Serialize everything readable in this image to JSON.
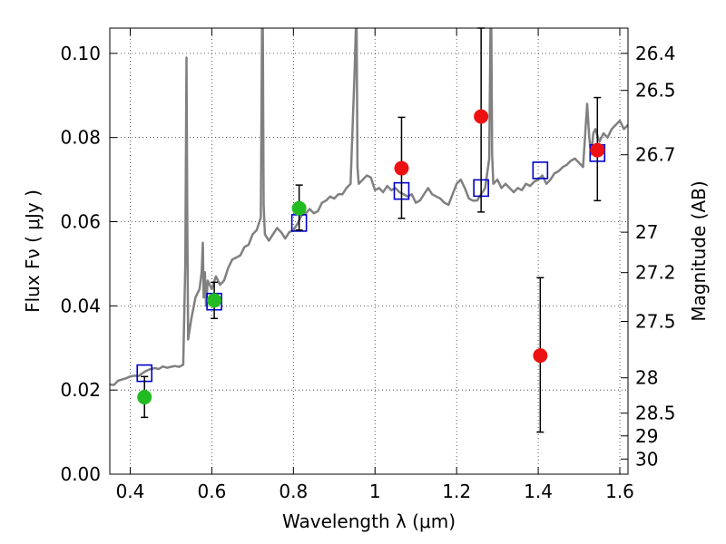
{
  "chart_data": {
    "type": "scatter",
    "xlabel": "Wavelength  λ (μm)",
    "ylabel": "Flux  Fν  ( μJy )",
    "ylabel_right": "Magnitude (AB)",
    "xlim": [
      0.35,
      1.62
    ],
    "ylim": [
      0.0,
      0.106
    ],
    "x_ticks": [
      0.4,
      0.6,
      0.8,
      1.0,
      1.2,
      1.4,
      1.6
    ],
    "x_tick_labels": [
      "0.4",
      "0.6",
      "0.8",
      "1",
      "1.2",
      "1.4",
      "1.6"
    ],
    "y_ticks": [
      0.0,
      0.02,
      0.04,
      0.06,
      0.08,
      0.1
    ],
    "y_tick_labels": [
      "0.00",
      "0.02",
      "0.04",
      "0.06",
      "0.08",
      "0.10"
    ],
    "right_ticks": [
      {
        "label": "26.4",
        "flux": 0.1
      },
      {
        "label": "26.5",
        "flux": 0.0912
      },
      {
        "label": "26.7",
        "flux": 0.0759
      },
      {
        "label": "27",
        "flux": 0.0575
      },
      {
        "label": "27.2",
        "flux": 0.0479
      },
      {
        "label": "27.5",
        "flux": 0.0363
      },
      {
        "label": "28",
        "flux": 0.0229
      },
      {
        "label": "28.5",
        "flux": 0.0145
      },
      {
        "label": "29",
        "flux": 0.0091
      },
      {
        "label": "30",
        "flux": 0.0036
      }
    ],
    "grid": true,
    "series": [
      {
        "kind": "model_sed",
        "color": "#808080",
        "x": [
          0.35,
          0.36,
          0.37,
          0.38,
          0.39,
          0.4,
          0.41,
          0.42,
          0.43,
          0.44,
          0.45,
          0.46,
          0.47,
          0.48,
          0.49,
          0.5,
          0.51,
          0.52,
          0.53,
          0.535,
          0.538,
          0.54,
          0.542,
          0.545,
          0.55,
          0.56,
          0.57,
          0.575,
          0.578,
          0.58,
          0.583,
          0.586,
          0.59,
          0.6,
          0.61,
          0.62,
          0.63,
          0.64,
          0.65,
          0.66,
          0.67,
          0.68,
          0.69,
          0.7,
          0.71,
          0.72,
          0.723,
          0.725,
          0.727,
          0.73,
          0.74,
          0.75,
          0.76,
          0.77,
          0.78,
          0.79,
          0.8,
          0.81,
          0.82,
          0.83,
          0.84,
          0.85,
          0.86,
          0.87,
          0.88,
          0.89,
          0.9,
          0.91,
          0.92,
          0.93,
          0.94,
          0.95,
          0.953,
          0.955,
          0.957,
          0.96,
          0.97,
          0.98,
          0.99,
          1.0,
          1.01,
          1.02,
          1.03,
          1.04,
          1.05,
          1.06,
          1.07,
          1.08,
          1.09,
          1.1,
          1.11,
          1.12,
          1.13,
          1.14,
          1.15,
          1.16,
          1.17,
          1.18,
          1.19,
          1.2,
          1.21,
          1.22,
          1.23,
          1.24,
          1.25,
          1.27,
          1.28,
          1.283,
          1.285,
          1.287,
          1.29,
          1.3,
          1.31,
          1.32,
          1.33,
          1.34,
          1.35,
          1.36,
          1.37,
          1.38,
          1.39,
          1.4,
          1.41,
          1.42,
          1.43,
          1.44,
          1.45,
          1.46,
          1.47,
          1.48,
          1.49,
          1.5,
          1.51,
          1.52,
          1.525,
          1.53,
          1.535,
          1.54,
          1.55,
          1.56,
          1.57,
          1.58,
          1.59,
          1.6,
          1.61,
          1.62
        ],
        "y": [
          0.0213,
          0.0212,
          0.0222,
          0.0225,
          0.0228,
          0.0232,
          0.0234,
          0.0233,
          0.024,
          0.0246,
          0.025,
          0.0252,
          0.025,
          0.0256,
          0.0253,
          0.0255,
          0.0257,
          0.0255,
          0.026,
          0.05,
          0.099,
          0.06,
          0.032,
          0.034,
          0.037,
          0.042,
          0.044,
          0.048,
          0.055,
          0.042,
          0.048,
          0.04,
          0.046,
          0.044,
          0.047,
          0.045,
          0.046,
          0.049,
          0.051,
          0.0515,
          0.052,
          0.054,
          0.0545,
          0.057,
          0.058,
          0.061,
          0.106,
          0.106,
          0.064,
          0.057,
          0.0555,
          0.057,
          0.0585,
          0.0575,
          0.056,
          0.0575,
          0.058,
          0.0595,
          0.0615,
          0.062,
          0.063,
          0.062,
          0.0625,
          0.0645,
          0.065,
          0.066,
          0.0655,
          0.0665,
          0.0665,
          0.068,
          0.069,
          0.096,
          0.106,
          0.106,
          0.073,
          0.069,
          0.07,
          0.071,
          0.0705,
          0.0675,
          0.068,
          0.067,
          0.0685,
          0.0675,
          0.068,
          0.067,
          0.0665,
          0.066,
          0.0665,
          0.0645,
          0.065,
          0.0665,
          0.068,
          0.0665,
          0.066,
          0.0655,
          0.0645,
          0.064,
          0.0665,
          0.069,
          0.07,
          0.068,
          0.0655,
          0.065,
          0.065,
          0.068,
          0.075,
          0.106,
          0.106,
          0.076,
          0.069,
          0.07,
          0.068,
          0.069,
          0.068,
          0.067,
          0.068,
          0.0675,
          0.069,
          0.0685,
          0.0695,
          0.07,
          0.071,
          0.069,
          0.07,
          0.0715,
          0.072,
          0.073,
          0.0735,
          0.0745,
          0.075,
          0.074,
          0.073,
          0.088,
          0.08,
          0.076,
          0.081,
          0.082,
          0.079,
          0.081,
          0.08,
          0.082,
          0.083,
          0.084,
          0.082,
          0.083
        ]
      },
      {
        "kind": "model_bands",
        "marker": "square",
        "color": "#0000cc",
        "x": [
          0.435,
          0.606,
          0.814,
          1.065,
          1.26,
          1.405,
          1.545
        ],
        "y": [
          0.024,
          0.041,
          0.0597,
          0.0673,
          0.068,
          0.0722,
          0.0763
        ]
      },
      {
        "kind": "photometry_optical",
        "marker": "circle",
        "color": "#22bb22",
        "x": [
          0.435,
          0.606,
          0.814
        ],
        "y": [
          0.0183,
          0.0413,
          0.0632
        ],
        "yerr_low": [
          0.0135,
          0.037,
          0.058
        ],
        "yerr_high": [
          0.0232,
          0.0456,
          0.0687
        ]
      },
      {
        "kind": "photometry_ir",
        "marker": "circle",
        "color": "#ee1111",
        "x": [
          1.065,
          1.26,
          1.405,
          1.545
        ],
        "y": [
          0.0727,
          0.085,
          0.0282,
          0.077
        ],
        "yerr_low": [
          0.0608,
          0.0623,
          0.01,
          0.065
        ],
        "yerr_high": [
          0.0848,
          0.106,
          0.0467,
          0.0895
        ]
      }
    ]
  }
}
